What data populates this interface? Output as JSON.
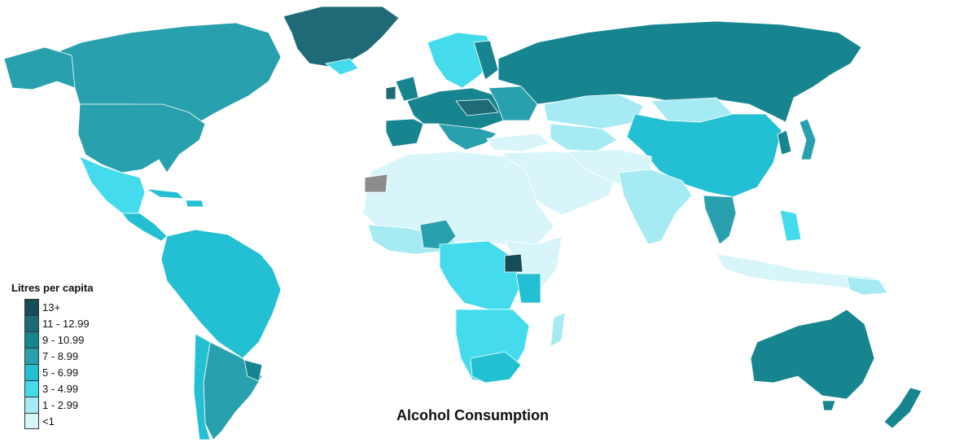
{
  "map": {
    "title": "Alcohol Consumption",
    "no_data_color": "#8c8c8c"
  },
  "legend": {
    "title": "Litres per capita",
    "classes": [
      {
        "label": "13+",
        "color": "#164e57"
      },
      {
        "label": "11 - 12.99",
        "color": "#1e6b77"
      },
      {
        "label": "9 - 10.99",
        "color": "#168590"
      },
      {
        "label": "7 - 8.99",
        "color": "#29a0ad"
      },
      {
        "label": "5 - 6.99",
        "color": "#22c0d2"
      },
      {
        "label": "3 - 4.99",
        "color": "#44dced"
      },
      {
        "label": "1 - 2.99",
        "color": "#a6ebf3"
      },
      {
        "label": "<1",
        "color": "#d8f6fa"
      }
    ]
  }
}
